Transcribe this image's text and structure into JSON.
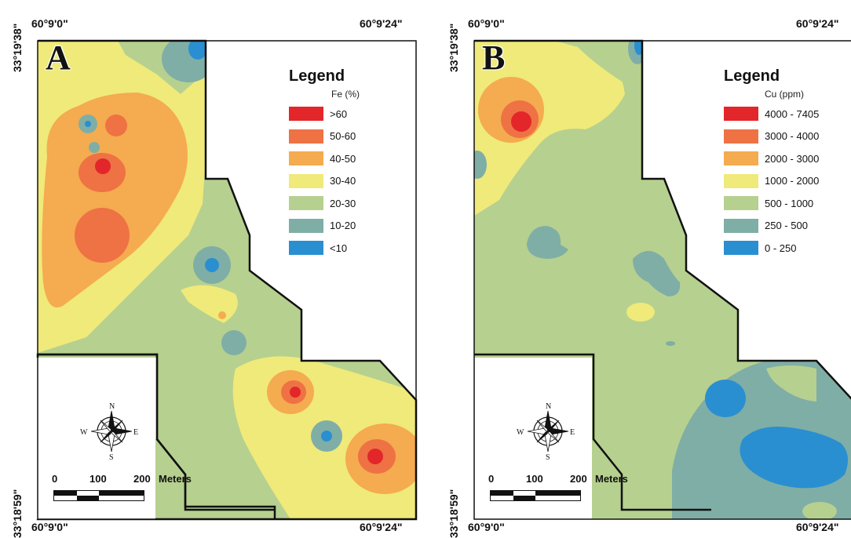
{
  "panels": [
    {
      "letter": "A",
      "coord_top_left": "60°9'0\"",
      "coord_top_right": "60°9'24\"",
      "coord_bottom_left": "60°9'0\"",
      "coord_bottom_right": "60°9'24\"",
      "lat_top": "33°19'38\"",
      "lat_bottom": "33°18'59\"",
      "legend": {
        "title": "Legend",
        "unit": "Fe (%)",
        "items": [
          {
            "label": ">60",
            "color": "#e3262a"
          },
          {
            "label": "50-60",
            "color": "#ee7244"
          },
          {
            "label": "40-50",
            "color": "#f5ab4f"
          },
          {
            "label": "30-40",
            "color": "#efea7a"
          },
          {
            "label": "20-30",
            "color": "#b6d08f"
          },
          {
            "label": "10-20",
            "color": "#7faea6"
          },
          {
            "label": "<10",
            "color": "#2a8fd0"
          }
        ]
      },
      "scale": {
        "labels": [
          "0",
          "100",
          "200"
        ],
        "unit": "Meters"
      },
      "compass": {
        "n": "N",
        "s": "S",
        "e": "E",
        "w": "W"
      }
    },
    {
      "letter": "B",
      "coord_top_left": "60°9'0\"",
      "coord_top_right": "60°9'24\"",
      "coord_bottom_left": "60°9'0\"",
      "coord_bottom_right": "60°9'24\"",
      "lat_top": "33°19'38\"",
      "lat_bottom": "33°18'59\"",
      "legend": {
        "title": "Legend",
        "unit": "Cu (ppm)",
        "items": [
          {
            "label": "4000 - 7405",
            "color": "#e3262a"
          },
          {
            "label": "3000 - 4000",
            "color": "#ee7244"
          },
          {
            "label": "2000 - 3000",
            "color": "#f5ab4f"
          },
          {
            "label": "1000 - 2000",
            "color": "#efea7a"
          },
          {
            "label": "500 - 1000",
            "color": "#b6d08f"
          },
          {
            "label": "250 - 500",
            "color": "#7faea6"
          },
          {
            "label": "0 - 250",
            "color": "#2a8fd0"
          }
        ]
      },
      "scale": {
        "labels": [
          "0",
          "100",
          "200"
        ],
        "unit": "Meters"
      },
      "compass": {
        "n": "N",
        "s": "S",
        "e": "E",
        "w": "W"
      }
    }
  ]
}
